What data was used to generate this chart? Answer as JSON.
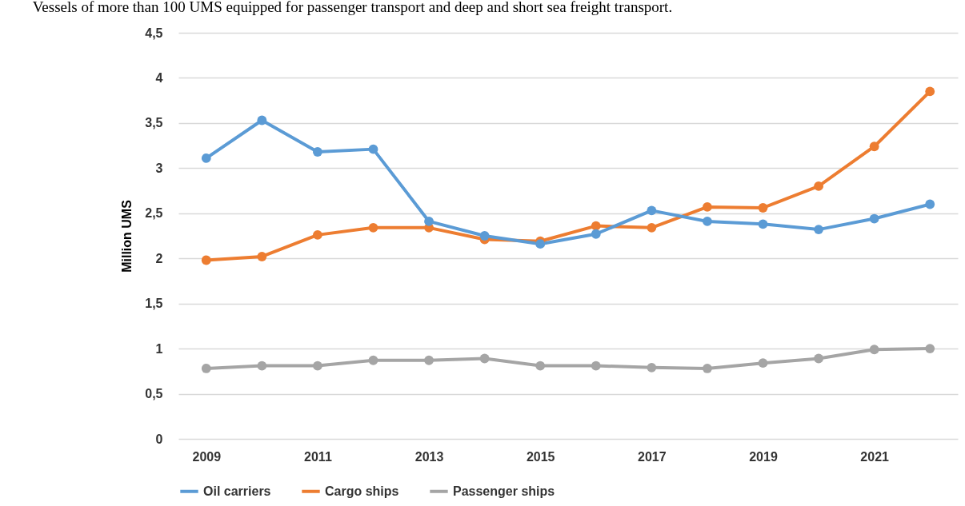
{
  "chart_data": {
    "type": "line",
    "title": "Vessels of more than 100 UMS equipped for passenger transport and deep and short sea freight transport.",
    "ylabel": "Million UMS",
    "categories": [
      "2009",
      null,
      "2011",
      null,
      "2013",
      null,
      "2015",
      null,
      "2017",
      null,
      "2019",
      null,
      "2021",
      null
    ],
    "series": [
      {
        "name": "Oil carriers",
        "color": "#5b9bd5",
        "values": [
          3.11,
          3.53,
          3.18,
          3.21,
          2.41,
          2.25,
          2.16,
          2.27,
          2.53,
          2.41,
          2.38,
          2.32,
          2.44,
          2.6
        ]
      },
      {
        "name": "Cargo ships",
        "color": "#ed7d31",
        "values": [
          1.98,
          2.02,
          2.26,
          2.34,
          2.34,
          2.21,
          2.19,
          2.36,
          2.34,
          2.57,
          2.56,
          2.8,
          3.24,
          3.85
        ]
      },
      {
        "name": "Passenger ships",
        "color": "#a5a5a5",
        "values": [
          0.78,
          0.81,
          0.81,
          0.87,
          0.87,
          0.89,
          0.81,
          0.81,
          0.79,
          0.78,
          0.84,
          0.89,
          0.99,
          1.0
        ]
      }
    ],
    "ylim": [
      0,
      4.5
    ],
    "yticks": [
      0,
      {
        "value": 0.5,
        "label": "0,5"
      },
      1,
      {
        "value": 1.5,
        "label": "1,5"
      },
      2,
      {
        "value": 2.5,
        "label": "2,5"
      },
      3,
      {
        "value": 3.5,
        "label": "3,5"
      },
      4,
      {
        "value": 4.5,
        "label": "4,5"
      }
    ],
    "grid": "y",
    "legend": "bottom",
    "marker": "circle",
    "line_style": "solid"
  }
}
